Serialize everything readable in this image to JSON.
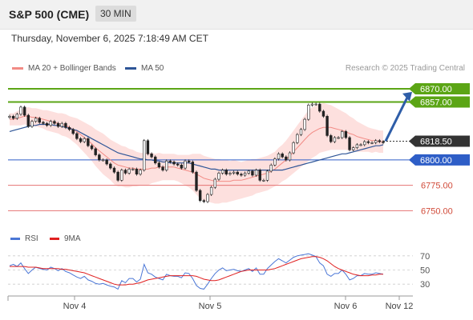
{
  "header": {
    "symbol": "S&P 500 (CME)",
    "timeframe": "30 MIN"
  },
  "datetime": "Thursday, November 6, 2025 7:18:49 AM CET",
  "source": "Research © 2025 Trading Central",
  "legend": {
    "ma20_label": "MA 20 + Bollinger Bands",
    "ma20_color": "#f28b85",
    "ma50_label": "MA 50",
    "ma50_color": "#2e5597",
    "rsi_label": "RSI",
    "rsi_color": "#4a76d6",
    "ma9_label": "9MA",
    "ma9_color": "#e02020"
  },
  "chart_data": [
    {
      "type": "candlestick",
      "x_ticks": [
        "Nov 4",
        "Nov 5",
        "Nov 6",
        "Nov 12"
      ],
      "ylim": [
        6733,
        6885
      ],
      "current_price": {
        "value": 6818.5,
        "label": "6818.50"
      },
      "levels": [
        {
          "value": 6870.0,
          "label": "6870.00",
          "kind": "resistance",
          "color": "#5ba515"
        },
        {
          "value": 6857.0,
          "label": "6857.00",
          "kind": "resistance",
          "color": "#5ba515"
        },
        {
          "value": 6800.0,
          "label": "6800.00",
          "kind": "pivot",
          "color": "#2e5ec7"
        },
        {
          "value": 6775.0,
          "label": "6775.00",
          "kind": "support",
          "color": "#e57373"
        },
        {
          "value": 6750.0,
          "label": "6750.00",
          "kind": "support",
          "color": "#e57373"
        }
      ],
      "forecast_arrow": {
        "from": 6818.5,
        "to": 6867,
        "color": "#2e5da8"
      },
      "close": [
        6843,
        6841,
        6845,
        6852,
        6844,
        6833,
        6838,
        6841,
        6837,
        6836,
        6834,
        6838,
        6836,
        6833,
        6836,
        6832,
        6830,
        6826,
        6821,
        6818,
        6821,
        6814,
        6811,
        6805,
        6800,
        6800,
        6796,
        6792,
        6788,
        6780,
        6790,
        6787,
        6791,
        6791,
        6786,
        6790,
        6819,
        6806,
        6803,
        6797,
        6793,
        6790,
        6799,
        6798,
        6796,
        6795,
        6792,
        6799,
        6798,
        6788,
        6770,
        6760,
        6759,
        6766,
        6773,
        6781,
        6787,
        6790,
        6786,
        6787,
        6788,
        6786,
        6785,
        6787,
        6789,
        6785,
        6790,
        6780,
        6780,
        6789,
        6795,
        6801,
        6806,
        6803,
        6800,
        6807,
        6817,
        6825,
        6830,
        6840,
        6854,
        6855,
        6855,
        6848,
        6843,
        6824,
        6818,
        6822,
        6822,
        6828,
        6822,
        6810,
        6812,
        6815,
        6815,
        6818,
        6817,
        6817,
        6819,
        6818,
        6817
      ],
      "open": [
        6842,
        6843,
        6841,
        6845,
        6852,
        6844,
        6833,
        6838,
        6841,
        6837,
        6836,
        6834,
        6838,
        6836,
        6833,
        6836,
        6832,
        6830,
        6826,
        6821,
        6818,
        6821,
        6814,
        6811,
        6805,
        6800,
        6800,
        6796,
        6792,
        6788,
        6780,
        6790,
        6787,
        6791,
        6791,
        6786,
        6790,
        6819,
        6806,
        6803,
        6797,
        6793,
        6790,
        6799,
        6798,
        6796,
        6795,
        6792,
        6799,
        6798,
        6788,
        6770,
        6760,
        6759,
        6766,
        6773,
        6781,
        6787,
        6790,
        6786,
        6787,
        6788,
        6786,
        6785,
        6787,
        6789,
        6785,
        6790,
        6780,
        6780,
        6789,
        6795,
        6801,
        6806,
        6803,
        6800,
        6807,
        6817,
        6825,
        6830,
        6840,
        6854,
        6855,
        6855,
        6848,
        6843,
        6824,
        6818,
        6822,
        6822,
        6828,
        6822,
        6810,
        6812,
        6815,
        6815,
        6818,
        6817,
        6817,
        6819,
        6818
      ],
      "ma20": [
        6840,
        6840,
        6841,
        6842,
        6843,
        6843,
        6842,
        6842,
        6841,
        6840,
        6839,
        6838,
        6837,
        6836,
        6835,
        6834,
        6832,
        6830,
        6828,
        6825,
        6822,
        6819,
        6816,
        6812,
        6809,
        6806,
        6803,
        6800,
        6797,
        6795,
        6794,
        6793,
        6792,
        6792,
        6791,
        6791,
        6791,
        6791,
        6792,
        6792,
        6793,
        6793,
        6793,
        6793,
        6793,
        6792,
        6791,
        6790,
        6789,
        6788,
        6786,
        6784,
        6782,
        6781,
        6780,
        6779,
        6779,
        6779,
        6779,
        6779,
        6780,
        6780,
        6780,
        6781,
        6782,
        6783,
        6784,
        6785,
        6786,
        6787,
        6789,
        6791,
        6794,
        6797,
        6800,
        6804,
        6808,
        6812,
        6816,
        6820,
        6824,
        6827,
        6829,
        6831,
        6832,
        6832,
        6832,
        6831,
        6830,
        6829,
        6828,
        6826,
        6825,
        6823,
        6822,
        6821,
        6820,
        6819,
        6819,
        6818,
        6818
      ],
      "bb_width": [
        6,
        6,
        7,
        8,
        8,
        9,
        9,
        9,
        9,
        9,
        10,
        10,
        10,
        10,
        11,
        11,
        11,
        12,
        13,
        14,
        15,
        16,
        17,
        18,
        19,
        20,
        20,
        20,
        21,
        21,
        20,
        20,
        19,
        18,
        17,
        16,
        16,
        16,
        15,
        14,
        14,
        13,
        13,
        13,
        13,
        13,
        14,
        15,
        16,
        18,
        20,
        22,
        22,
        22,
        22,
        22,
        22,
        21,
        21,
        20,
        20,
        19,
        18,
        18,
        18,
        18,
        17,
        17,
        17,
        17,
        17,
        17,
        18,
        18,
        19,
        20,
        21,
        22,
        23,
        24,
        25,
        25,
        25,
        24,
        24,
        23,
        22,
        21,
        20,
        19,
        18,
        17,
        16,
        15,
        14,
        13,
        12,
        12,
        11,
        11,
        11
      ],
      "ma50": [
        6828,
        6829,
        6830,
        6831,
        6832,
        6833,
        6834,
        6834,
        6835,
        6835,
        6835,
        6835,
        6834,
        6834,
        6833,
        6832,
        6831,
        6830,
        6829,
        6827,
        6825,
        6823,
        6821,
        6819,
        6817,
        6815,
        6813,
        6811,
        6809,
        6807,
        6806,
        6805,
        6804,
        6803,
        6802,
        6801,
        6801,
        6800,
        6800,
        6799,
        6799,
        6798,
        6798,
        6797,
        6797,
        6797,
        6797,
        6797,
        6797,
        6796,
        6795,
        6794,
        6793,
        6792,
        6791,
        6791,
        6790,
        6790,
        6790,
        6790,
        6790,
        6790,
        6790,
        6790,
        6790,
        6790,
        6790,
        6790,
        6790,
        6790,
        6790,
        6790,
        6790,
        6790,
        6791,
        6792,
        6793,
        6794,
        6795,
        6796,
        6797,
        6798,
        6799,
        6800,
        6801,
        6802,
        6803,
        6804,
        6805,
        6806,
        6806,
        6807,
        6808,
        6809,
        6810,
        6811,
        6812,
        6813,
        6814,
        6814,
        6815
      ]
    },
    {
      "type": "line",
      "name": "RSI",
      "ylim": [
        20,
        80
      ],
      "y_ticks": [
        30,
        50,
        70
      ],
      "rsi": [
        56,
        58,
        55,
        60,
        52,
        45,
        50,
        54,
        52,
        51,
        50,
        54,
        52,
        49,
        52,
        48,
        46,
        43,
        40,
        38,
        41,
        36,
        34,
        31,
        30,
        31,
        29,
        27,
        26,
        23,
        35,
        32,
        38,
        38,
        33,
        37,
        58,
        46,
        44,
        40,
        38,
        36,
        44,
        42,
        41,
        41,
        39,
        46,
        45,
        38,
        28,
        24,
        23,
        30,
        38,
        45,
        50,
        53,
        49,
        50,
        51,
        49,
        48,
        50,
        52,
        48,
        53,
        44,
        44,
        52,
        57,
        62,
        66,
        63,
        60,
        64,
        68,
        70,
        71,
        72,
        73,
        71,
        69,
        60,
        56,
        44,
        41,
        45,
        45,
        50,
        44,
        36,
        38,
        42,
        42,
        45,
        44,
        44,
        46,
        45,
        44
      ],
      "ma9": [
        55,
        55,
        55,
        55,
        55,
        54,
        54,
        54,
        53,
        52,
        52,
        52,
        52,
        52,
        51,
        51,
        50,
        49,
        48,
        47,
        46,
        44,
        42,
        40,
        38,
        36,
        34,
        32,
        30,
        29,
        29,
        29,
        30,
        30,
        31,
        32,
        34,
        36,
        37,
        38,
        39,
        40,
        41,
        42,
        42,
        42,
        42,
        42,
        42,
        42,
        41,
        39,
        37,
        36,
        35,
        35,
        36,
        38,
        40,
        42,
        44,
        46,
        48,
        49,
        50,
        50,
        50,
        50,
        50,
        50,
        51,
        52,
        54,
        56,
        58,
        60,
        62,
        64,
        66,
        67,
        68,
        69,
        69,
        68,
        66,
        63,
        59,
        55,
        52,
        50,
        48,
        46,
        44,
        43,
        42,
        42,
        42,
        43,
        43,
        44,
        44
      ]
    }
  ]
}
